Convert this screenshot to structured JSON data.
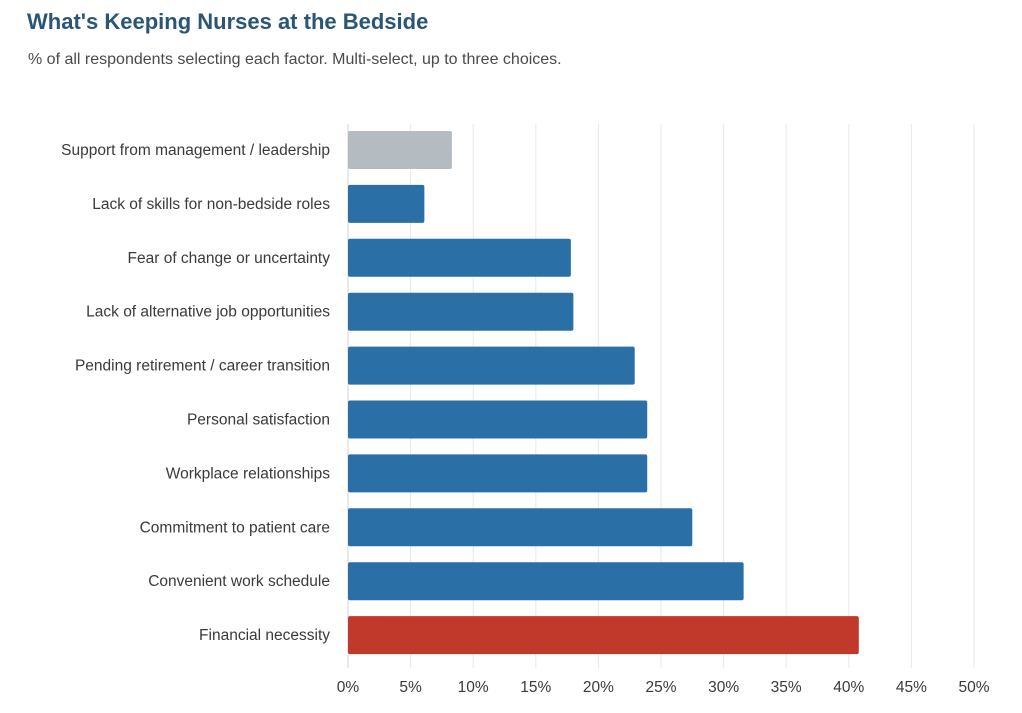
{
  "chart_data": {
    "type": "bar",
    "orientation": "horizontal",
    "title": "What's Keeping Nurses at the Bedside",
    "subtitle": "% of all respondents selecting each factor. Multi-select, up to three choices.",
    "categories": [
      "Support from management / leadership",
      "Lack of skills for non-bedside roles",
      "Fear of change or uncertainty",
      "Lack of alternative job opportunities",
      "Pending retirement / career transition",
      "Personal satisfaction",
      "Workplace relationships",
      "Commitment to patient care",
      "Convenient work schedule",
      "Financial necessity"
    ],
    "values": [
      8.3,
      6.1,
      17.8,
      18.0,
      22.9,
      23.9,
      23.9,
      27.5,
      31.6,
      40.8
    ],
    "colors": [
      "#b4bcc2",
      "#2a6fa5",
      "#2a6fa5",
      "#2a6fa5",
      "#2a6fa5",
      "#2a6fa5",
      "#2a6fa5",
      "#2a6fa5",
      "#2a6fa5",
      "#c0392b"
    ],
    "xlim": [
      0,
      50
    ],
    "xticks": [
      0,
      5,
      10,
      15,
      20,
      25,
      30,
      35,
      40,
      45,
      50
    ],
    "xtick_labels": [
      "0%",
      "5%",
      "10%",
      "15%",
      "20%",
      "25%",
      "30%",
      "35%",
      "40%",
      "45%",
      "50%"
    ],
    "xlabel": "",
    "ylabel": "",
    "grid": "vertical",
    "legend": "none"
  }
}
